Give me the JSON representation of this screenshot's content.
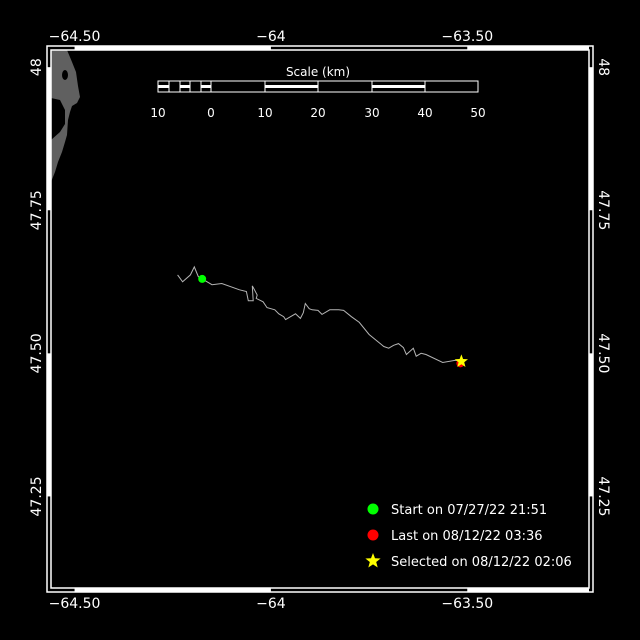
{
  "chart_data": {
    "type": "map",
    "xlim": [
      -64.56,
      -63.19
    ],
    "ylim": [
      47.09,
      48.03
    ],
    "x_ticks": [
      {
        "value": -64.5,
        "label": "−64.50"
      },
      {
        "value": -64.0,
        "label": "−64"
      },
      {
        "value": -63.5,
        "label": "−63.50"
      }
    ],
    "y_ticks": [
      {
        "value": 48.0,
        "label": "48"
      },
      {
        "value": 47.75,
        "label": "47.75"
      },
      {
        "value": 47.5,
        "label": "47.50"
      },
      {
        "value": 47.25,
        "label": "47.25"
      }
    ],
    "grid": false,
    "colors": {
      "background": "#000000",
      "land": "#606060",
      "track": "#b4b4b4",
      "start": "#00ff00",
      "last": "#ff0000",
      "selected": "#ffff00",
      "frame": "#ffffff"
    },
    "scale_bar": {
      "title": "Scale (km)",
      "labels": [
        "10",
        "0",
        "10",
        "20",
        "30",
        "40",
        "50"
      ]
    },
    "track": [
      [
        -64.2375,
        47.637
      ],
      [
        -64.225,
        47.625
      ],
      [
        -64.205,
        47.637
      ],
      [
        -64.195,
        47.651
      ],
      [
        -64.185,
        47.634
      ],
      [
        -64.175,
        47.63
      ],
      [
        -64.15,
        47.62
      ],
      [
        -64.125,
        47.622
      ],
      [
        -64.08,
        47.611
      ],
      [
        -64.0625,
        47.608
      ],
      [
        -64.0575,
        47.592
      ],
      [
        -64.045,
        47.592
      ],
      [
        -64.0475,
        47.618
      ],
      [
        -64.035,
        47.602
      ],
      [
        -64.0375,
        47.596
      ],
      [
        -64.02,
        47.59
      ],
      [
        -64.01,
        47.58
      ],
      [
        -63.99,
        47.576
      ],
      [
        -63.98,
        47.569
      ],
      [
        -63.9675,
        47.564
      ],
      [
        -63.9625,
        47.559
      ],
      [
        -63.95,
        47.564
      ],
      [
        -63.9375,
        47.569
      ],
      [
        -63.925,
        47.561
      ],
      [
        -63.9175,
        47.571
      ],
      [
        -63.9125,
        47.587
      ],
      [
        -63.9025,
        47.578
      ],
      [
        -63.895,
        47.576
      ],
      [
        -63.88,
        47.575
      ],
      [
        -63.87,
        47.568
      ],
      [
        -63.85,
        47.576
      ],
      [
        -63.8275,
        47.576
      ],
      [
        -63.815,
        47.575
      ],
      [
        -63.795,
        47.564
      ],
      [
        -63.775,
        47.554
      ],
      [
        -63.75,
        47.533
      ],
      [
        -63.725,
        47.519
      ],
      [
        -63.7125,
        47.512
      ],
      [
        -63.7,
        47.509
      ],
      [
        -63.6875,
        47.514
      ],
      [
        -63.675,
        47.517
      ],
      [
        -63.6625,
        47.51
      ],
      [
        -63.655,
        47.498
      ],
      [
        -63.6375,
        47.509
      ],
      [
        -63.63,
        47.495
      ],
      [
        -63.6175,
        47.5
      ],
      [
        -63.605,
        47.498
      ],
      [
        -63.5625,
        47.484
      ],
      [
        -63.53,
        47.488
      ],
      [
        -63.515,
        47.486
      ]
    ],
    "markers": {
      "start": {
        "lon": -64.175,
        "lat": 47.63
      },
      "last": {
        "lon": -63.515,
        "lat": 47.486
      },
      "selected": {
        "lon": -63.515,
        "lat": 47.486
      }
    },
    "legend": {
      "placement": "bottom-right",
      "entries": [
        {
          "symbol": "circle",
          "color": "#00ff00",
          "label": "Start on 07/27/22 21:51"
        },
        {
          "symbol": "circle",
          "color": "#ff0000",
          "label": "Last on 08/12/22 03:36"
        },
        {
          "symbol": "star",
          "color": "#ffff00",
          "label": "Selected on 08/12/22 02:06"
        }
      ]
    }
  }
}
